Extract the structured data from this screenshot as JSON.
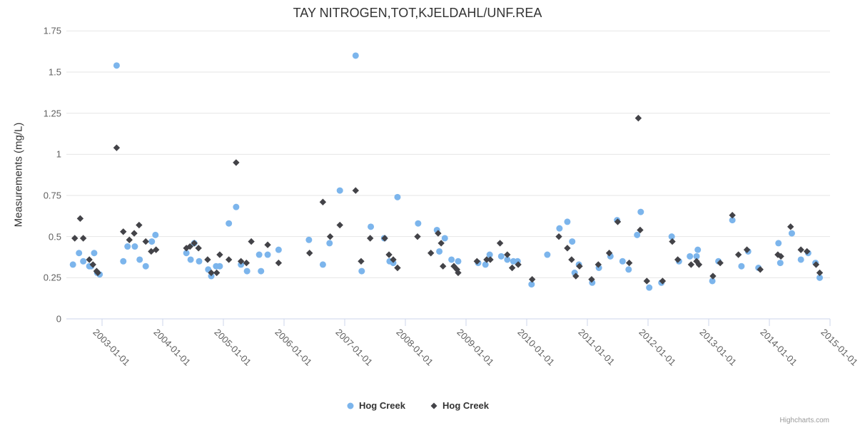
{
  "header": {
    "title": "TAY NITROGEN,TOT,KJELDAHL/UNF.REA"
  },
  "credits": {
    "label": "Highcharts.com"
  },
  "legend": {
    "items": [
      {
        "label": "Hog Creek",
        "marker": "circle",
        "color": "#7cb5ec"
      },
      {
        "label": "Hog Creek",
        "marker": "diamond",
        "color": "#434348"
      }
    ]
  },
  "colors": {
    "series1": "#7cb5ec",
    "series2": "#434348",
    "gridline": "#e6e6e6",
    "axis_line": "#ccd6eb",
    "tick_label": "#606060",
    "title_text": "#333333"
  },
  "chart_data": {
    "type": "scatter",
    "title": "TAY NITROGEN,TOT,KJELDAHL/UNF.REA",
    "xlabel": "",
    "ylabel": "Measurements (mg/L)",
    "x_unit": "decimal_year",
    "xlim": [
      2002.4,
      2015.05
    ],
    "ylim": [
      0,
      1.75
    ],
    "grid": "horizontal",
    "legend_position": "bottom",
    "y_ticks": [
      0,
      0.25,
      0.5,
      0.75,
      1,
      1.25,
      1.5,
      1.75
    ],
    "y_tick_labels": [
      "0",
      "0.25",
      "0.5",
      "0.75",
      "1",
      "1.25",
      "1.5",
      "1.75"
    ],
    "x_tick_years": [
      2003,
      2004,
      2005,
      2006,
      2007,
      2008,
      2009,
      2010,
      2011,
      2012,
      2013,
      2014,
      2015
    ],
    "x_tick_labels": [
      "2003-01-01",
      "2004-01-01",
      "2005-01-01",
      "2006-01-01",
      "2007-01-01",
      "2008-01-01",
      "2009-01-01",
      "2010-01-01",
      "2011-01-01",
      "2012-01-01",
      "2013-01-01",
      "2014-01-01",
      "2015-01-01"
    ],
    "series": [
      {
        "name": "Hog Creek",
        "marker": "circle",
        "color": "#7cb5ec",
        "points": [
          [
            2002.52,
            0.33
          ],
          [
            2002.62,
            0.4
          ],
          [
            2002.69,
            0.35
          ],
          [
            2002.79,
            0.32
          ],
          [
            2002.82,
            0.32
          ],
          [
            2002.87,
            0.4
          ],
          [
            2002.92,
            0.28
          ],
          [
            2002.96,
            0.27
          ],
          [
            2003.24,
            1.54
          ],
          [
            2003.35,
            0.35
          ],
          [
            2003.42,
            0.44
          ],
          [
            2003.54,
            0.44
          ],
          [
            2003.62,
            0.36
          ],
          [
            2003.72,
            0.32
          ],
          [
            2003.82,
            0.47
          ],
          [
            2003.88,
            0.51
          ],
          [
            2004.39,
            0.4
          ],
          [
            2004.46,
            0.36
          ],
          [
            2004.52,
            0.46
          ],
          [
            2004.6,
            0.35
          ],
          [
            2004.75,
            0.3
          ],
          [
            2004.8,
            0.26
          ],
          [
            2004.88,
            0.32
          ],
          [
            2004.94,
            0.32
          ],
          [
            2005.09,
            0.58
          ],
          [
            2005.21,
            0.68
          ],
          [
            2005.29,
            0.33
          ],
          [
            2005.39,
            0.29
          ],
          [
            2005.59,
            0.39
          ],
          [
            2005.62,
            0.29
          ],
          [
            2005.73,
            0.39
          ],
          [
            2005.91,
            0.42
          ],
          [
            2006.41,
            0.48
          ],
          [
            2006.64,
            0.33
          ],
          [
            2006.75,
            0.46
          ],
          [
            2006.92,
            0.78
          ],
          [
            2007.18,
            1.6
          ],
          [
            2007.28,
            0.29
          ],
          [
            2007.43,
            0.56
          ],
          [
            2007.65,
            0.49
          ],
          [
            2007.74,
            0.35
          ],
          [
            2007.8,
            0.34
          ],
          [
            2007.87,
            0.74
          ],
          [
            2008.21,
            0.58
          ],
          [
            2008.52,
            0.54
          ],
          [
            2008.56,
            0.41
          ],
          [
            2008.65,
            0.49
          ],
          [
            2008.76,
            0.36
          ],
          [
            2008.87,
            0.35
          ],
          [
            2009.2,
            0.34
          ],
          [
            2009.32,
            0.33
          ],
          [
            2009.39,
            0.39
          ],
          [
            2009.58,
            0.38
          ],
          [
            2009.68,
            0.36
          ],
          [
            2009.78,
            0.35
          ],
          [
            2009.85,
            0.35
          ],
          [
            2010.08,
            0.21
          ],
          [
            2010.34,
            0.39
          ],
          [
            2010.54,
            0.55
          ],
          [
            2010.67,
            0.59
          ],
          [
            2010.75,
            0.47
          ],
          [
            2010.79,
            0.28
          ],
          [
            2010.86,
            0.33
          ],
          [
            2011.08,
            0.22
          ],
          [
            2011.19,
            0.31
          ],
          [
            2011.38,
            0.38
          ],
          [
            2011.49,
            0.6
          ],
          [
            2011.58,
            0.35
          ],
          [
            2011.68,
            0.3
          ],
          [
            2011.82,
            0.51
          ],
          [
            2011.88,
            0.65
          ],
          [
            2012.02,
            0.19
          ],
          [
            2012.22,
            0.22
          ],
          [
            2012.39,
            0.5
          ],
          [
            2012.51,
            0.35
          ],
          [
            2012.69,
            0.38
          ],
          [
            2012.8,
            0.38
          ],
          [
            2012.82,
            0.42
          ],
          [
            2013.06,
            0.23
          ],
          [
            2013.16,
            0.35
          ],
          [
            2013.39,
            0.6
          ],
          [
            2013.54,
            0.32
          ],
          [
            2013.65,
            0.41
          ],
          [
            2013.82,
            0.31
          ],
          [
            2014.15,
            0.46
          ],
          [
            2014.18,
            0.34
          ],
          [
            2014.37,
            0.52
          ],
          [
            2014.52,
            0.36
          ],
          [
            2014.64,
            0.4
          ],
          [
            2014.76,
            0.34
          ],
          [
            2014.83,
            0.25
          ]
        ]
      },
      {
        "name": "Hog Creek",
        "marker": "diamond",
        "color": "#434348",
        "points": [
          [
            2002.55,
            0.49
          ],
          [
            2002.64,
            0.61
          ],
          [
            2002.69,
            0.49
          ],
          [
            2002.79,
            0.36
          ],
          [
            2002.85,
            0.33
          ],
          [
            2002.91,
            0.29
          ],
          [
            2002.93,
            0.28
          ],
          [
            2003.24,
            1.04
          ],
          [
            2003.35,
            0.53
          ],
          [
            2003.45,
            0.48
          ],
          [
            2003.53,
            0.52
          ],
          [
            2003.61,
            0.57
          ],
          [
            2003.72,
            0.47
          ],
          [
            2003.81,
            0.41
          ],
          [
            2003.89,
            0.42
          ],
          [
            2004.39,
            0.43
          ],
          [
            2004.45,
            0.44
          ],
          [
            2004.52,
            0.46
          ],
          [
            2004.59,
            0.43
          ],
          [
            2004.74,
            0.36
          ],
          [
            2004.8,
            0.28
          ],
          [
            2004.89,
            0.28
          ],
          [
            2004.94,
            0.39
          ],
          [
            2005.09,
            0.36
          ],
          [
            2005.21,
            0.95
          ],
          [
            2005.29,
            0.35
          ],
          [
            2005.38,
            0.34
          ],
          [
            2005.46,
            0.47
          ],
          [
            2005.73,
            0.45
          ],
          [
            2005.91,
            0.34
          ],
          [
            2006.42,
            0.4
          ],
          [
            2006.64,
            0.71
          ],
          [
            2006.76,
            0.5
          ],
          [
            2006.92,
            0.57
          ],
          [
            2007.18,
            0.78
          ],
          [
            2007.27,
            0.35
          ],
          [
            2007.42,
            0.49
          ],
          [
            2007.66,
            0.49
          ],
          [
            2007.73,
            0.39
          ],
          [
            2007.8,
            0.36
          ],
          [
            2007.87,
            0.31
          ],
          [
            2008.2,
            0.5
          ],
          [
            2008.42,
            0.4
          ],
          [
            2008.54,
            0.52
          ],
          [
            2008.59,
            0.46
          ],
          [
            2008.62,
            0.32
          ],
          [
            2008.8,
            0.32
          ],
          [
            2008.85,
            0.3
          ],
          [
            2008.87,
            0.28
          ],
          [
            2009.18,
            0.35
          ],
          [
            2009.34,
            0.36
          ],
          [
            2009.4,
            0.36
          ],
          [
            2009.56,
            0.46
          ],
          [
            2009.68,
            0.39
          ],
          [
            2009.76,
            0.31
          ],
          [
            2009.86,
            0.33
          ],
          [
            2010.09,
            0.24
          ],
          [
            2010.53,
            0.5
          ],
          [
            2010.67,
            0.43
          ],
          [
            2010.74,
            0.36
          ],
          [
            2010.81,
            0.26
          ],
          [
            2010.87,
            0.32
          ],
          [
            2011.07,
            0.24
          ],
          [
            2011.18,
            0.33
          ],
          [
            2011.36,
            0.4
          ],
          [
            2011.5,
            0.59
          ],
          [
            2011.69,
            0.34
          ],
          [
            2011.84,
            1.22
          ],
          [
            2011.87,
            0.54
          ],
          [
            2011.98,
            0.23
          ],
          [
            2012.24,
            0.23
          ],
          [
            2012.4,
            0.47
          ],
          [
            2012.49,
            0.36
          ],
          [
            2012.71,
            0.33
          ],
          [
            2012.8,
            0.35
          ],
          [
            2012.84,
            0.33
          ],
          [
            2013.07,
            0.26
          ],
          [
            2013.19,
            0.34
          ],
          [
            2013.39,
            0.63
          ],
          [
            2013.49,
            0.39
          ],
          [
            2013.63,
            0.42
          ],
          [
            2013.85,
            0.3
          ],
          [
            2014.14,
            0.39
          ],
          [
            2014.19,
            0.38
          ],
          [
            2014.35,
            0.56
          ],
          [
            2014.52,
            0.42
          ],
          [
            2014.62,
            0.41
          ],
          [
            2014.77,
            0.33
          ],
          [
            2014.83,
            0.28
          ]
        ]
      }
    ]
  }
}
